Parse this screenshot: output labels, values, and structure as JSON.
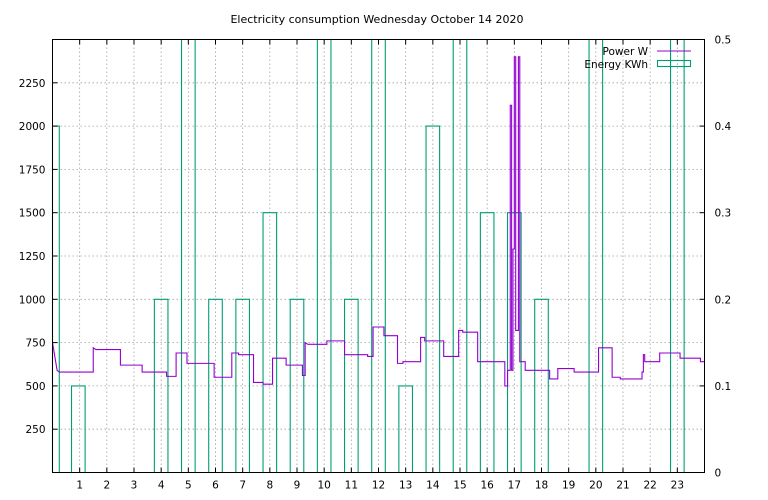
{
  "chart_data": {
    "type": "line",
    "title": "Electricity consumption Wednesday October 14 2020",
    "xlim": [
      0,
      24
    ],
    "ylim": [
      0,
      2500
    ],
    "y2lim": [
      0,
      0.5
    ],
    "x_ticks": [
      1,
      2,
      3,
      4,
      5,
      6,
      7,
      8,
      9,
      10,
      11,
      12,
      13,
      14,
      15,
      16,
      17,
      18,
      19,
      20,
      21,
      22,
      23
    ],
    "y_ticks": [
      250,
      500,
      750,
      1000,
      1250,
      1500,
      1750,
      2000,
      2250
    ],
    "y2_ticks": [
      0,
      0.1,
      0.2,
      0.3,
      0.4,
      0.5
    ],
    "y2_tick_labels": [
      "0",
      "0.1",
      "0.2",
      "0.3",
      "0.4",
      "0.5"
    ],
    "grid": true,
    "legend_position": "top-right",
    "series": [
      {
        "name": "Power W",
        "axis": "y1",
        "color": "#9400d3",
        "style": "step",
        "points": [
          [
            0,
            750
          ],
          [
            0.17,
            590
          ],
          [
            0.25,
            580
          ],
          [
            1.5,
            580
          ],
          [
            1.5,
            720
          ],
          [
            1.6,
            710
          ],
          [
            2.5,
            710
          ],
          [
            2.5,
            620
          ],
          [
            3.3,
            620
          ],
          [
            3.3,
            580
          ],
          [
            4.2,
            580
          ],
          [
            4.2,
            555
          ],
          [
            4.55,
            555
          ],
          [
            4.55,
            690
          ],
          [
            4.95,
            690
          ],
          [
            4.95,
            630
          ],
          [
            5.95,
            630
          ],
          [
            5.95,
            550
          ],
          [
            6.6,
            550
          ],
          [
            6.6,
            690
          ],
          [
            6.85,
            690
          ],
          [
            6.85,
            680
          ],
          [
            7.4,
            680
          ],
          [
            7.4,
            520
          ],
          [
            7.75,
            520
          ],
          [
            7.75,
            510
          ],
          [
            8.1,
            510
          ],
          [
            8.1,
            660
          ],
          [
            8.6,
            660
          ],
          [
            8.6,
            620
          ],
          [
            9.2,
            620
          ],
          [
            9.2,
            560
          ],
          [
            9.3,
            560
          ],
          [
            9.3,
            750
          ],
          [
            9.4,
            740
          ],
          [
            10.1,
            740
          ],
          [
            10.1,
            760
          ],
          [
            10.75,
            760
          ],
          [
            10.75,
            680
          ],
          [
            11.6,
            680
          ],
          [
            11.6,
            670
          ],
          [
            11.8,
            670
          ],
          [
            11.8,
            840
          ],
          [
            12.2,
            840
          ],
          [
            12.2,
            790
          ],
          [
            12.7,
            790
          ],
          [
            12.7,
            630
          ],
          [
            12.9,
            630
          ],
          [
            12.9,
            640
          ],
          [
            13.55,
            640
          ],
          [
            13.55,
            780
          ],
          [
            13.7,
            780
          ],
          [
            13.7,
            760
          ],
          [
            14.4,
            760
          ],
          [
            14.4,
            670
          ],
          [
            14.95,
            670
          ],
          [
            14.95,
            820
          ],
          [
            15.1,
            820
          ],
          [
            15.1,
            810
          ],
          [
            15.65,
            810
          ],
          [
            15.65,
            640
          ],
          [
            16.65,
            640
          ],
          [
            16.65,
            500
          ],
          [
            16.75,
            500
          ],
          [
            16.75,
            590
          ],
          [
            16.85,
            590
          ],
          [
            16.85,
            2120
          ],
          [
            16.9,
            2120
          ],
          [
            16.9,
            590
          ],
          [
            16.95,
            590
          ],
          [
            16.95,
            1290
          ],
          [
            17.0,
            1290
          ],
          [
            17.0,
            2400
          ],
          [
            17.05,
            2400
          ],
          [
            17.05,
            820
          ],
          [
            17.15,
            820
          ],
          [
            17.15,
            2400
          ],
          [
            17.2,
            2400
          ],
          [
            17.2,
            640
          ],
          [
            17.4,
            640
          ],
          [
            17.4,
            590
          ],
          [
            18.3,
            590
          ],
          [
            18.3,
            540
          ],
          [
            18.6,
            540
          ],
          [
            18.6,
            600
          ],
          [
            19.2,
            600
          ],
          [
            19.2,
            580
          ],
          [
            20.1,
            580
          ],
          [
            20.1,
            720
          ],
          [
            20.6,
            720
          ],
          [
            20.6,
            550
          ],
          [
            20.9,
            550
          ],
          [
            20.9,
            540
          ],
          [
            21.7,
            540
          ],
          [
            21.7,
            580
          ],
          [
            21.75,
            580
          ],
          [
            21.75,
            680
          ],
          [
            21.8,
            680
          ],
          [
            21.8,
            640
          ],
          [
            22.35,
            640
          ],
          [
            22.35,
            690
          ],
          [
            23.1,
            690
          ],
          [
            23.1,
            660
          ],
          [
            23.85,
            660
          ],
          [
            23.85,
            640
          ],
          [
            24,
            640
          ]
        ]
      },
      {
        "name": "Energy KWh",
        "axis": "y2",
        "color": "#009e73",
        "style": "impulse-boxes",
        "bars": [
          {
            "x0": 0.0,
            "x1": 0.25,
            "value": 0.4
          },
          {
            "x0": 0.7,
            "x1": 1.2,
            "value": 0.1
          },
          {
            "x0": 3.75,
            "x1": 4.25,
            "value": 0.2
          },
          {
            "x0": 4.75,
            "x1": 5.25,
            "value": 0.5
          },
          {
            "x0": 5.75,
            "x1": 6.25,
            "value": 0.2
          },
          {
            "x0": 6.75,
            "x1": 7.25,
            "value": 0.2
          },
          {
            "x0": 7.75,
            "x1": 8.25,
            "value": 0.3
          },
          {
            "x0": 8.75,
            "x1": 9.25,
            "value": 0.2
          },
          {
            "x0": 9.75,
            "x1": 10.25,
            "value": 0.5
          },
          {
            "x0": 10.75,
            "x1": 11.25,
            "value": 0.2
          },
          {
            "x0": 11.75,
            "x1": 12.25,
            "value": 0.5
          },
          {
            "x0": 12.75,
            "x1": 13.25,
            "value": 0.1
          },
          {
            "x0": 13.75,
            "x1": 14.25,
            "value": 0.4
          },
          {
            "x0": 14.75,
            "x1": 15.25,
            "value": 0.5
          },
          {
            "x0": 15.75,
            "x1": 16.25,
            "value": 0.3
          },
          {
            "x0": 16.75,
            "x1": 17.25,
            "value": 0.3
          },
          {
            "x0": 17.75,
            "x1": 18.25,
            "value": 0.2
          },
          {
            "x0": 19.75,
            "x1": 20.25,
            "value": 0.5
          },
          {
            "x0": 22.75,
            "x1": 23.25,
            "value": 0.5
          }
        ]
      }
    ]
  }
}
